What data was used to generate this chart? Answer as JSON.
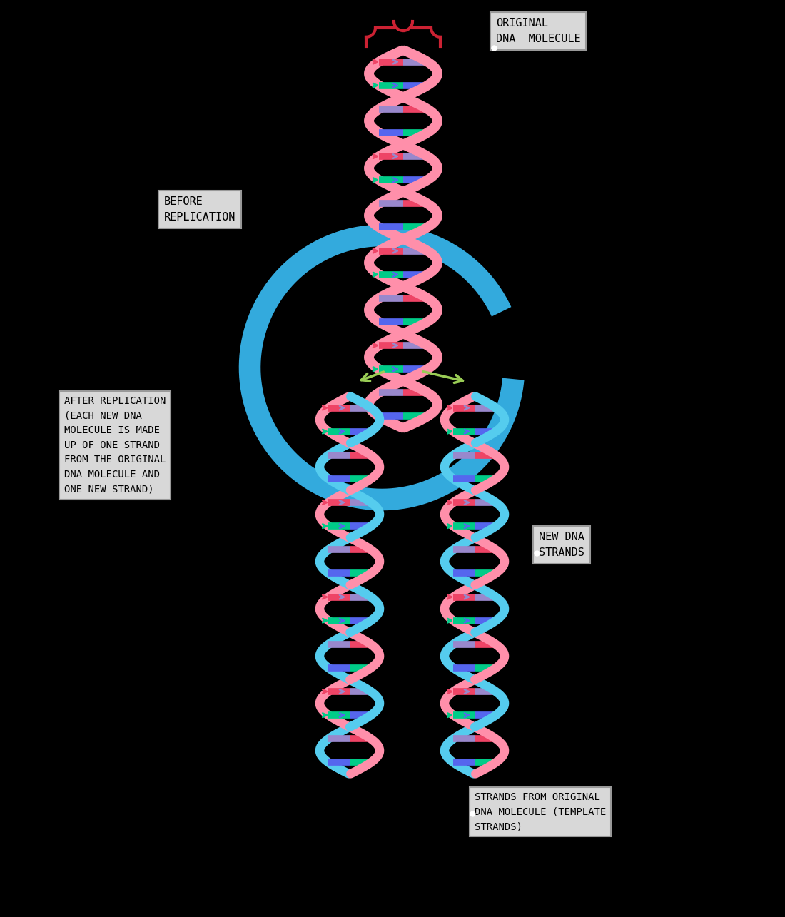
{
  "background_color": "#000000",
  "label_bg": "#d8d8d8",
  "label_original": "ORIGINAL\nDNA  MOLECULE",
  "label_before": "BEFORE\nREPLICATION",
  "label_after": "AFTER REPLICATION\n(EACH NEW DNA\nMOLECULE IS MADE\nUP OF ONE STRAND\nFROM THE ORIGINAL\nDNA MOLECULE AND\nONE NEW STRAND)",
  "label_new_dna": "NEW DNA\nSTRANDS",
  "label_template": "STRANDS FROM ORIGINAL\nDNA MOLECULE (TEMPLATE\nSTRANDS)",
  "pink_color": "#FF8FAA",
  "blue_strand": "#55CCEE",
  "blue_arrow": "#33AADD",
  "green_base": "#00CC88",
  "red_base": "#EE4466",
  "blue_base": "#5566EE",
  "purple_base": "#9988CC",
  "brace_color": "#CC2233",
  "green_arrow": "#99CC55"
}
